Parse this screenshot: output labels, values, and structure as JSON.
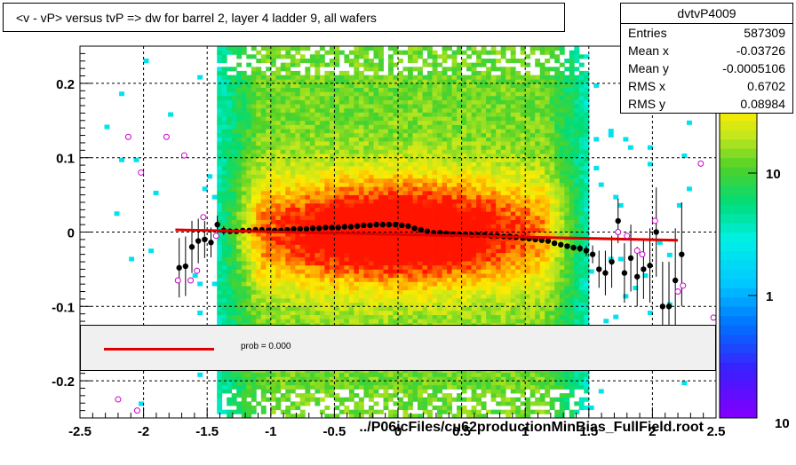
{
  "stats": {
    "name": "dvtvP4009",
    "rows": [
      {
        "label": "Entries",
        "value": "587309"
      },
      {
        "label": "Mean x",
        "value": "-0.03726"
      },
      {
        "label": "Mean y",
        "value": "-0.0005106"
      },
      {
        "label": "RMS x",
        "value": "0.6702"
      },
      {
        "label": "RMS y",
        "value": "0.08984"
      }
    ]
  },
  "colors": {
    "fit_line": "#e00000",
    "points": "#000000",
    "open_markers": "#cc00cc"
  },
  "chart_data": {
    "type": "heatmap",
    "title": "<v - vP>       versus  tvP =>  dw for barrel 2, layer 4 ladder 9, all wafers",
    "xlabel": "../P06icFiles/cu62productionMinBias_FullField.root",
    "ylabel": "",
    "xlim": [
      -2.5,
      2.5
    ],
    "ylim": [
      -0.25,
      0.25
    ],
    "x_ticks": [
      "-2.5",
      "-2",
      "-1.5",
      "-1",
      "-0.5",
      "0",
      "0.5",
      "1",
      "1.5",
      "2",
      "2.5"
    ],
    "y_ticks": [
      "-0.2",
      "-0.1",
      "0",
      "0.1",
      "0.2"
    ],
    "grid": true,
    "z_scale": "log",
    "z_ticks": [
      "1",
      "10"
    ],
    "z_tick_clipped": "10",
    "legend": {
      "label": "prob = 0.000",
      "placement": "bottom-center"
    },
    "fit_line": {
      "x": [
        -1.75,
        2.2
      ],
      "y": [
        0.003,
        -0.011
      ]
    },
    "profile_points": {
      "x": [
        -1.72,
        -1.67,
        -1.62,
        -1.57,
        -1.52,
        -1.47,
        -1.42,
        -1.37,
        -1.32,
        -1.27,
        -1.22,
        -1.17,
        -1.12,
        -1.07,
        -1.02,
        -0.97,
        -0.92,
        -0.87,
        -0.82,
        -0.77,
        -0.72,
        -0.67,
        -0.62,
        -0.57,
        -0.52,
        -0.47,
        -0.42,
        -0.37,
        -0.32,
        -0.27,
        -0.22,
        -0.17,
        -0.12,
        -0.07,
        -0.02,
        0.03,
        0.08,
        0.13,
        0.18,
        0.23,
        0.28,
        0.33,
        0.38,
        0.43,
        0.48,
        0.53,
        0.58,
        0.63,
        0.68,
        0.73,
        0.78,
        0.83,
        0.88,
        0.93,
        0.98,
        1.03,
        1.08,
        1.13,
        1.18,
        1.23,
        1.28,
        1.33,
        1.38,
        1.43,
        1.48,
        1.53,
        1.58,
        1.63,
        1.68,
        1.73,
        1.78,
        1.83,
        1.88,
        1.93,
        1.98,
        2.03,
        2.08,
        2.13,
        2.18,
        2.23
      ],
      "y": [
        -0.048,
        -0.046,
        -0.02,
        -0.012,
        -0.01,
        -0.014,
        0.01,
        0.002,
        0.001,
        0.001,
        0.002,
        0.002,
        0.003,
        0.003,
        0.002,
        0.002,
        0.002,
        0.003,
        0.004,
        0.004,
        0.004,
        0.005,
        0.005,
        0.006,
        0.006,
        0.006,
        0.007,
        0.007,
        0.008,
        0.009,
        0.009,
        0.01,
        0.01,
        0.01,
        0.01,
        0.009,
        0.008,
        0.005,
        0.003,
        0.001,
        -0.001,
        -0.001,
        -0.002,
        -0.003,
        -0.003,
        -0.003,
        -0.004,
        -0.004,
        -0.004,
        -0.005,
        -0.005,
        -0.006,
        -0.006,
        -0.007,
        -0.008,
        -0.009,
        -0.01,
        -0.011,
        -0.012,
        -0.015,
        -0.017,
        -0.019,
        -0.021,
        -0.022,
        -0.025,
        -0.03,
        -0.05,
        -0.055,
        -0.04,
        0.015,
        -0.055,
        -0.035,
        -0.06,
        -0.05,
        -0.045,
        0.0,
        -0.1,
        -0.1,
        -0.065,
        -0.03
      ],
      "err": [
        0.04,
        0.04,
        0.035,
        0.03,
        0.025,
        0.02,
        0.012,
        0.006,
        0.004,
        0.003,
        0.003,
        0.002,
        0.002,
        0.002,
        0.002,
        0.002,
        0.002,
        0.002,
        0.002,
        0.002,
        0.002,
        0.002,
        0.002,
        0.002,
        0.002,
        0.002,
        0.002,
        0.002,
        0.002,
        0.002,
        0.002,
        0.002,
        0.002,
        0.002,
        0.002,
        0.002,
        0.002,
        0.002,
        0.002,
        0.002,
        0.002,
        0.002,
        0.002,
        0.002,
        0.002,
        0.002,
        0.002,
        0.002,
        0.002,
        0.002,
        0.002,
        0.002,
        0.002,
        0.002,
        0.002,
        0.002,
        0.002,
        0.002,
        0.002,
        0.002,
        0.003,
        0.003,
        0.004,
        0.005,
        0.007,
        0.012,
        0.025,
        0.03,
        0.035,
        0.03,
        0.04,
        0.045,
        0.04,
        0.04,
        0.05,
        0.06,
        0.06,
        0.06,
        0.07,
        0.07
      ]
    },
    "open_markers": {
      "x": [
        -2.2,
        -2.05,
        -2.02,
        -1.82,
        -1.73,
        -1.68,
        -1.63,
        -1.58,
        -1.53,
        -1.43,
        -2.12,
        1.73,
        1.8,
        1.88,
        1.92,
        2.02,
        2.2,
        2.24,
        2.38,
        2.48
      ],
      "y": [
        -0.225,
        -0.24,
        0.08,
        0.128,
        -0.065,
        0.103,
        -0.065,
        -0.052,
        0.02,
        -0.005,
        0.128,
        0.0,
        -0.005,
        -0.025,
        -0.03,
        0.015,
        -0.08,
        -0.072,
        0.092,
        -0.115
      ]
    }
  }
}
